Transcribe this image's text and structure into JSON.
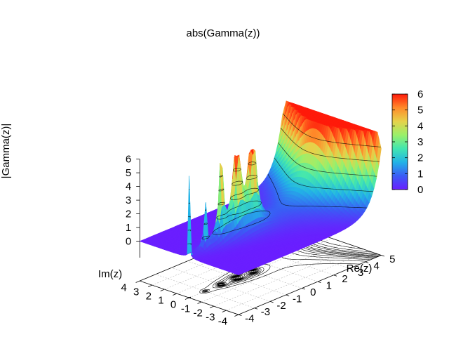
{
  "chart_data": {
    "type": "surface3d",
    "title": "abs(Gamma(z))",
    "function": "abs(Gamma(z))",
    "xlabel": "Re(z)",
    "ylabel": "Im(z)",
    "zlabel": "|Gamma(z)|",
    "x_ticks": [
      "-4",
      "-3",
      "-2",
      "-1",
      "0",
      "1",
      "2",
      "3",
      "4",
      "5"
    ],
    "y_ticks": [
      "4",
      "3",
      "2",
      "1",
      "0",
      "-1",
      "-2",
      "-3",
      "-4"
    ],
    "z_ticks": [
      "0",
      "1",
      "2",
      "3",
      "4",
      "5",
      "6"
    ],
    "xlim": [
      -4,
      5
    ],
    "ylim": [
      -4,
      4
    ],
    "zlim": [
      0,
      6
    ],
    "colorbar": {
      "palette": "rainbow",
      "range": [
        0,
        6
      ],
      "ticks": [
        "0",
        "1",
        "2",
        "3",
        "4",
        "5",
        "6"
      ],
      "stops": [
        "#6a1eff",
        "#3a5cf5",
        "#22b3e6",
        "#42e6b0",
        "#9af06a",
        "#e6d24a",
        "#ff8a2a",
        "#ff1a0a"
      ]
    },
    "contours_on_base": true,
    "contours_on_surface": true,
    "grid": true
  }
}
